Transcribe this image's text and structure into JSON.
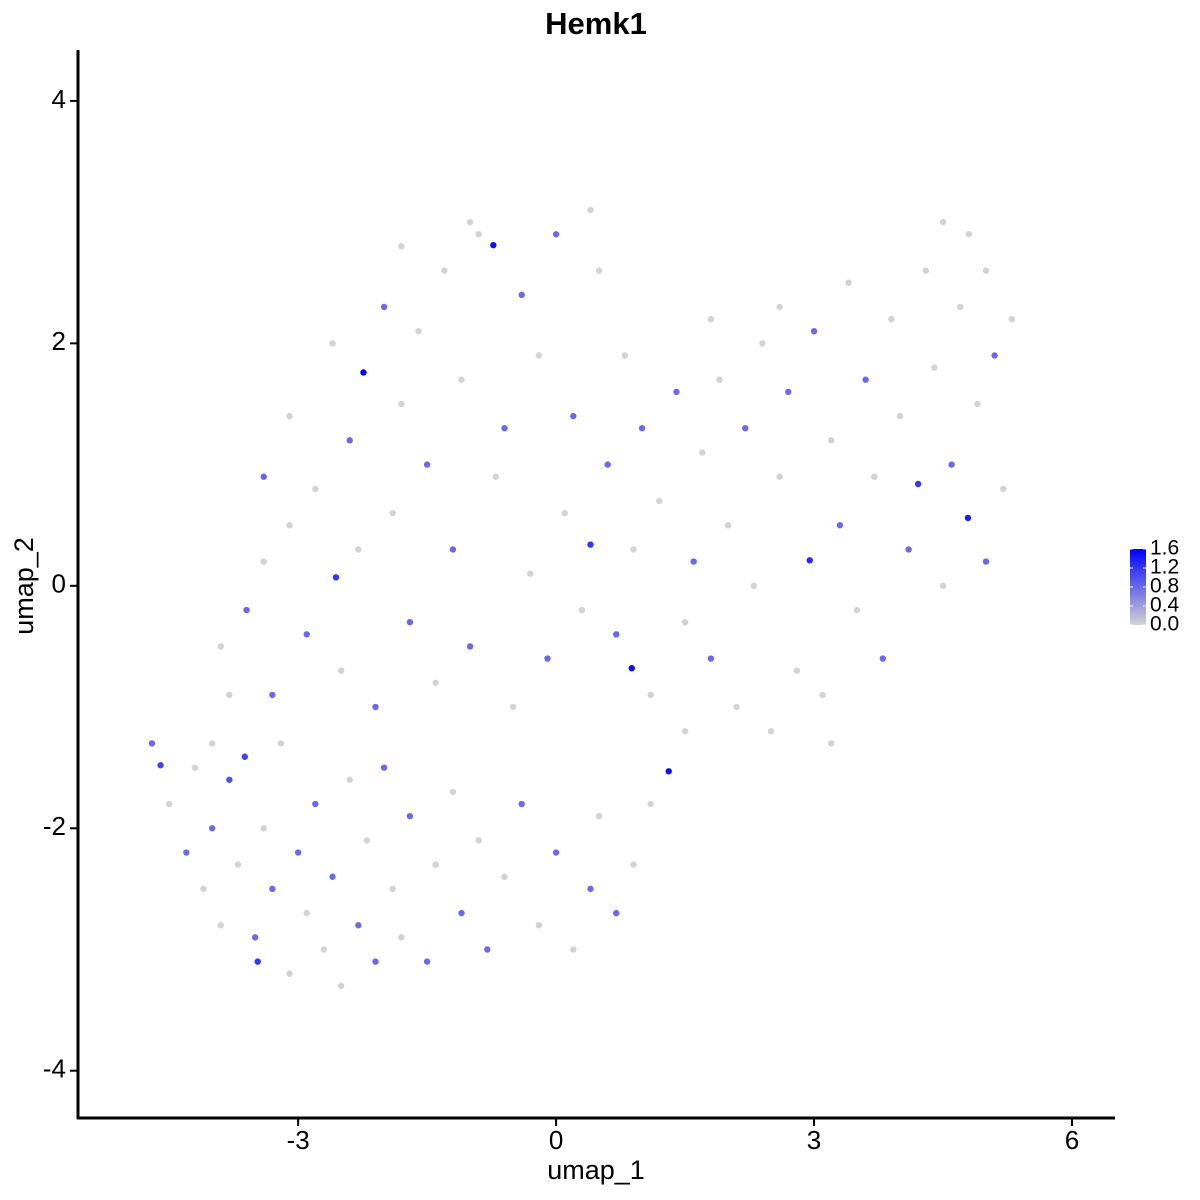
{
  "chart_data": {
    "type": "scatter",
    "title": "Hemk1",
    "x_label": "umap_1",
    "y_label": "umap_2",
    "xlim": [
      -5.56,
      6.5
    ],
    "ylim": [
      -4.39,
      4.42
    ],
    "xticks": [
      -3,
      0,
      3,
      6
    ],
    "yticks": [
      -4,
      -2,
      0,
      2,
      4
    ],
    "colorbar": {
      "lim": [
        0,
        1.6
      ],
      "colors": [
        "#d3d3d3",
        "#0000ff"
      ],
      "ticks": [
        {
          "value": 0,
          "label": "0.0"
        },
        0.4,
        0.8,
        1.2,
        1.6
      ]
    },
    "x": [
      -4.7,
      -4.6,
      -4.5,
      -4.3,
      -4.2,
      -4.1,
      -4.0,
      -3.9,
      -3.8,
      -3.7,
      -3.62,
      -3.5,
      -3.47,
      -3.4,
      -3.3,
      -3.2,
      -3.1,
      -3.0,
      -2.9,
      -2.8,
      -2.7,
      -2.6,
      -2.5,
      -2.4,
      -2.3,
      -2.2,
      -2.1,
      -2.0,
      -1.9,
      -1.8,
      -1.7,
      -1.5,
      -1.4,
      -1.2,
      -1.1,
      -0.9,
      -0.8,
      -0.6,
      -0.4,
      -0.2,
      0.0,
      0.2,
      0.4,
      0.5,
      0.7,
      0.9,
      1.1,
      1.31,
      0.88,
      1.5,
      -3.9,
      -3.6,
      -3.4,
      -3.3,
      -3.1,
      -2.9,
      -2.8,
      -2.56,
      -2.5,
      -2.4,
      -2.3,
      -2.24,
      -2.1,
      -2.0,
      -1.9,
      -1.8,
      -1.7,
      -1.6,
      -1.5,
      -1.4,
      -1.3,
      -1.2,
      -1.1,
      -1.0,
      -0.9,
      -0.73,
      -0.7,
      -0.6,
      -0.5,
      -0.4,
      -0.3,
      -0.2,
      -0.1,
      0.0,
      0.1,
      0.2,
      0.3,
      0.4,
      0.5,
      0.6,
      0.7,
      0.8,
      0.9,
      1.0,
      1.1,
      1.2,
      1.4,
      1.5,
      1.6,
      1.7,
      1.8,
      1.9,
      2.0,
      2.1,
      2.2,
      2.3,
      2.4,
      2.5,
      2.6,
      2.7,
      2.8,
      2.95,
      3.0,
      3.1,
      3.2,
      3.3,
      3.4,
      3.5,
      3.6,
      3.7,
      3.8,
      3.9,
      4.0,
      4.1,
      4.21,
      4.3,
      4.4,
      4.5,
      4.6,
      4.7,
      4.79,
      4.9,
      5.0,
      5.1,
      5.2,
      5.3,
      5.0,
      4.8,
      4.5,
      3.2,
      -1.0,
      -1.8,
      0.4,
      -2.6,
      -3.1,
      -3.4,
      -3.8,
      -4.0,
      1.8,
      2.6
    ],
    "y": [
      -1.3,
      -1.48,
      -1.8,
      -2.2,
      -1.5,
      -2.5,
      -2.0,
      -2.8,
      -1.6,
      -2.3,
      -1.41,
      -2.9,
      -3.1,
      -2.0,
      -2.5,
      -1.3,
      -3.2,
      -2.2,
      -2.7,
      -1.8,
      -3.0,
      -2.4,
      -3.3,
      -1.6,
      -2.8,
      -2.1,
      -3.1,
      -1.5,
      -2.5,
      -2.9,
      -1.9,
      -3.1,
      -2.3,
      -1.7,
      -2.7,
      -2.1,
      -3.0,
      -2.4,
      -1.8,
      -2.8,
      -2.2,
      -3.0,
      -2.5,
      -1.9,
      -2.7,
      -2.3,
      -1.8,
      -1.53,
      -0.68,
      -1.2,
      -0.5,
      -0.2,
      0.2,
      -0.9,
      0.5,
      -0.4,
      0.8,
      0.07,
      -0.7,
      1.2,
      0.3,
      1.76,
      -1.0,
      2.3,
      0.6,
      1.5,
      -0.3,
      2.1,
      1.0,
      -0.8,
      2.6,
      0.3,
      1.7,
      -0.5,
      2.9,
      2.81,
      0.9,
      1.3,
      -1.0,
      2.4,
      0.1,
      1.9,
      -0.6,
      2.9,
      0.6,
      1.4,
      -0.2,
      0.34,
      2.6,
      1.0,
      -0.4,
      1.9,
      0.3,
      1.3,
      -0.9,
      0.7,
      1.6,
      -0.3,
      0.2,
      1.1,
      -0.6,
      1.7,
      0.5,
      -1.0,
      1.3,
      0.0,
      2.0,
      -1.2,
      0.9,
      1.6,
      -0.7,
      0.21,
      2.1,
      -0.9,
      1.2,
      0.5,
      2.5,
      -0.2,
      1.7,
      0.9,
      -0.6,
      2.2,
      1.4,
      0.3,
      0.84,
      2.6,
      1.8,
      3.0,
      1.0,
      2.3,
      0.56,
      1.5,
      2.6,
      1.9,
      0.8,
      2.2,
      0.2,
      2.9,
      0.0,
      -1.3,
      3.0,
      2.8,
      3.1,
      2.0,
      1.4,
      0.9,
      -0.9,
      -1.3,
      2.2,
      2.3
    ],
    "values": [
      0.8,
      1.1,
      0,
      0.8,
      0,
      0,
      0.8,
      0,
      1.0,
      0,
      1.1,
      0.8,
      1.2,
      0,
      0.8,
      0,
      0,
      0.8,
      0,
      0.8,
      0,
      0.8,
      0,
      0,
      0.8,
      0,
      0.8,
      0.8,
      0,
      0,
      0.8,
      0.8,
      0,
      0,
      0.8,
      0,
      0.8,
      0,
      0.8,
      0,
      0.8,
      0,
      0.8,
      0,
      0.8,
      0,
      0,
      1.5,
      1.5,
      0,
      0,
      0.8,
      0,
      0.8,
      0,
      0.8,
      0,
      1.2,
      0,
      0.8,
      0,
      1.6,
      0.8,
      0.8,
      0,
      0,
      0.8,
      0,
      0.8,
      0,
      0,
      0.8,
      0,
      0.8,
      0,
      1.5,
      0,
      0.8,
      0,
      0.8,
      0,
      0,
      0.8,
      0.8,
      0,
      0.8,
      0,
      1.2,
      0,
      0.8,
      0.8,
      0,
      0,
      0.8,
      0,
      0,
      0.8,
      0,
      0.8,
      0,
      0.8,
      0,
      0,
      0,
      0.8,
      0,
      0,
      0,
      0,
      0.8,
      0,
      1.3,
      0.8,
      0,
      0,
      0.8,
      0,
      0,
      0.8,
      0,
      0.8,
      0,
      0,
      0.8,
      1.2,
      0,
      0,
      0,
      0.8,
      0,
      1.4,
      0,
      0,
      0.8,
      0,
      0,
      0.8,
      0,
      0,
      0,
      0,
      0,
      0,
      0,
      0,
      0.8,
      0,
      0,
      0,
      0
    ]
  }
}
